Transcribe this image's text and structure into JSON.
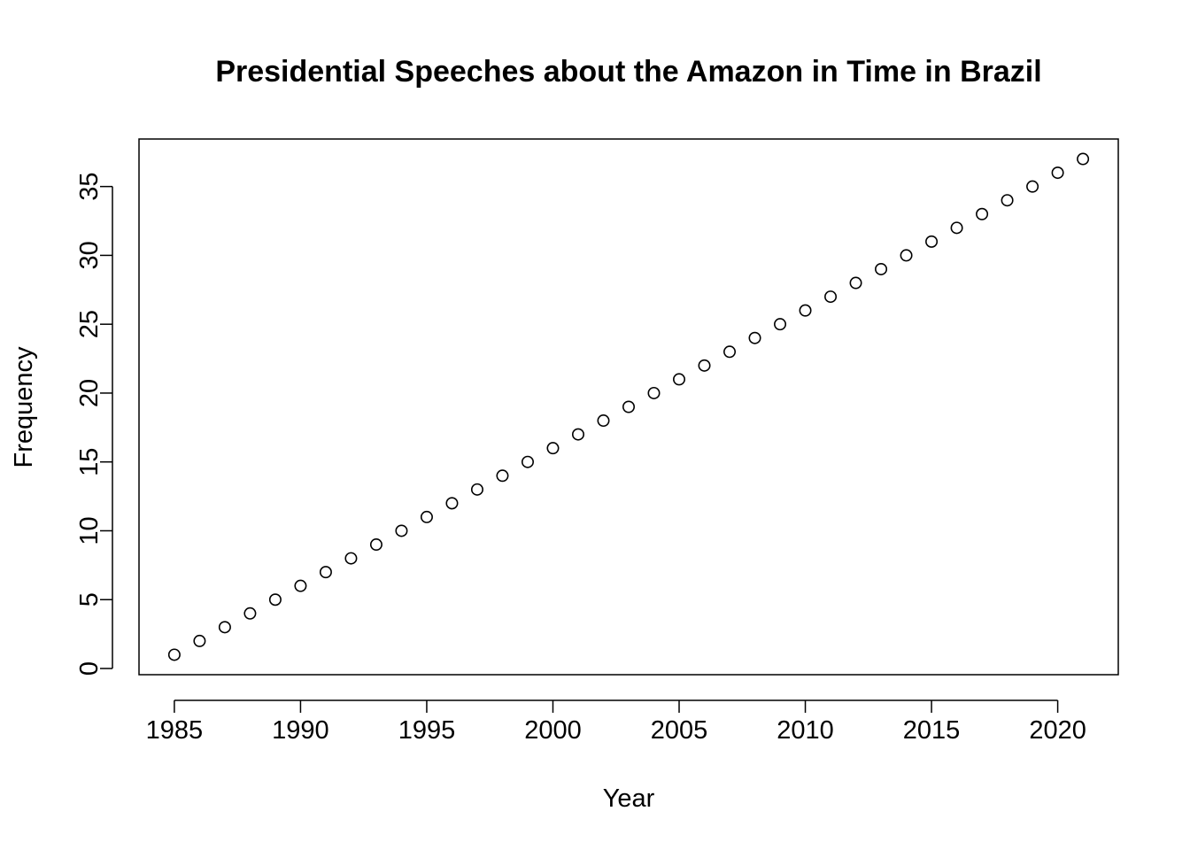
{
  "chart_data": {
    "type": "scatter",
    "title": "Presidential Speeches about the Amazon in Time in Brazil",
    "xlabel": "Year",
    "ylabel": "Frequency",
    "xlim": [
      1983.6,
      2022.4
    ],
    "ylim": [
      -0.45,
      38.45
    ],
    "xticks": [
      1985,
      1990,
      1995,
      2000,
      2005,
      2010,
      2015,
      2020
    ],
    "yticks": [
      0,
      5,
      10,
      15,
      20,
      25,
      30,
      35
    ],
    "marker": "open-circle",
    "grid": false,
    "legend": "none",
    "x": [
      1985,
      1986,
      1987,
      1988,
      1989,
      1990,
      1991,
      1992,
      1993,
      1994,
      1995,
      1996,
      1997,
      1998,
      1999,
      2000,
      2001,
      2002,
      2003,
      2004,
      2005,
      2006,
      2007,
      2008,
      2009,
      2010,
      2011,
      2012,
      2013,
      2014,
      2015,
      2016,
      2017,
      2018,
      2019,
      2020,
      2021
    ],
    "y": [
      1,
      2,
      3,
      4,
      5,
      6,
      7,
      8,
      9,
      10,
      11,
      12,
      13,
      14,
      15,
      16,
      17,
      18,
      19,
      20,
      21,
      22,
      23,
      24,
      25,
      26,
      27,
      28,
      29,
      30,
      31,
      32,
      33,
      34,
      35,
      36,
      37
    ]
  }
}
